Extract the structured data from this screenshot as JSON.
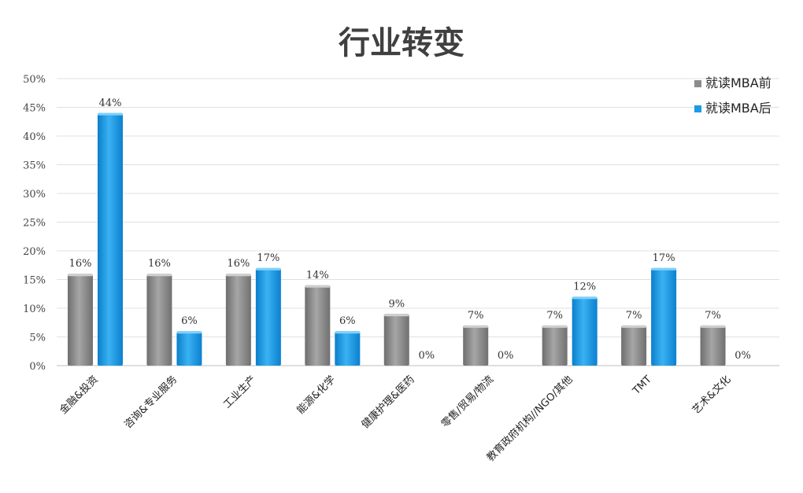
{
  "chart_data": {
    "type": "bar",
    "title": "行业转变",
    "xlabel": "",
    "ylabel": "",
    "ylim": [
      0,
      50
    ],
    "yticks": [
      "0%",
      "5%",
      "10%",
      "15%",
      "20%",
      "25%",
      "30%",
      "35%",
      "40%",
      "45%",
      "50%"
    ],
    "grid": true,
    "legend_position": "top-right",
    "categories": [
      "金融&投资",
      "咨询&专业服务",
      "工业生产",
      "能源&化学",
      "健康护理&医药",
      "零售/贸易/物流",
      "教育政府机构//NGO/其他",
      "TMT",
      "艺术&文化"
    ],
    "series": [
      {
        "name": "就读MBA前",
        "color": "#8c8c8c",
        "values": [
          16,
          16,
          16,
          14,
          9,
          7,
          7,
          7,
          7
        ],
        "labels": [
          "16%",
          "16%",
          "16%",
          "14%",
          "9%",
          "7%",
          "7%",
          "7%",
          "7%"
        ]
      },
      {
        "name": "就读MBA后",
        "color": "#1a9be6",
        "values": [
          44,
          6,
          17,
          6,
          0,
          0,
          12,
          17,
          0
        ],
        "labels": [
          "44%",
          "6%",
          "17%",
          "6%",
          "0%",
          "0%",
          "12%",
          "17%",
          "0%"
        ]
      }
    ]
  }
}
